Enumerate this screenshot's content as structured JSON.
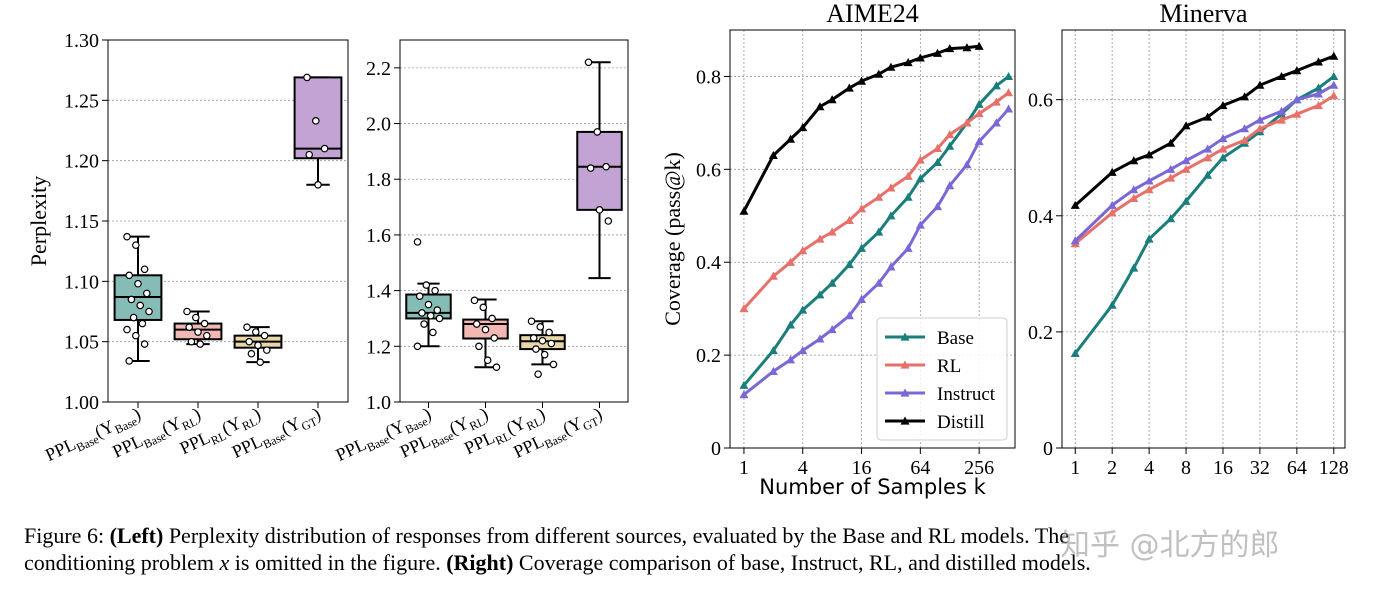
{
  "chart_data": [
    {
      "type": "box",
      "ylabel": "Perplexity",
      "categories": [
        [
          "PPL",
          "Base",
          "(Y",
          "Base",
          ")"
        ],
        [
          "PPL",
          "Base",
          "(Y",
          "RL",
          ")"
        ],
        [
          "PPL",
          "RL",
          "(Y",
          "RL",
          ")"
        ],
        [
          "PPL",
          "Base",
          "(Y",
          "GT",
          ")"
        ]
      ],
      "boxes": [
        {
          "min": 1.034,
          "q1": 1.068,
          "median": 1.087,
          "q3": 1.105,
          "max": 1.137,
          "color": "#86bcb6",
          "points": [
            1.137,
            1.13,
            1.11,
            1.105,
            1.098,
            1.09,
            1.085,
            1.08,
            1.075,
            1.07,
            1.065,
            1.06,
            1.055,
            1.048,
            1.034
          ]
        },
        {
          "min": 1.048,
          "q1": 1.052,
          "median": 1.06,
          "q3": 1.065,
          "max": 1.075,
          "color": "#f2b8b4",
          "points": [
            1.075,
            1.07,
            1.065,
            1.062,
            1.058,
            1.055,
            1.05,
            1.048
          ]
        },
        {
          "min": 1.033,
          "q1": 1.045,
          "median": 1.05,
          "q3": 1.055,
          "max": 1.062,
          "color": "#e8d6a8",
          "points": [
            1.062,
            1.058,
            1.055,
            1.05,
            1.047,
            1.043,
            1.04,
            1.033
          ]
        },
        {
          "min": 1.18,
          "q1": 1.202,
          "median": 1.21,
          "q3": 1.269,
          "max": 1.269,
          "color": "#c3a3d3",
          "points": [
            1.269,
            1.233,
            1.21,
            1.205,
            1.18
          ]
        }
      ],
      "ylim": [
        1.0,
        1.3
      ],
      "yticks": [
        {
          "value": 1.0,
          "label": "1.00"
        },
        1.05,
        {
          "value": 1.1,
          "label": "1.10"
        },
        1.15,
        {
          "value": 1.2,
          "label": "1.20"
        },
        1.25,
        {
          "value": 1.3,
          "label": "1.30"
        }
      ],
      "grid": true
    },
    {
      "type": "box",
      "categories": [
        [
          "PPL",
          "Base",
          "(Y",
          "Base",
          ")"
        ],
        [
          "PPL",
          "Base",
          "(Y",
          "RL",
          ")"
        ],
        [
          "PPL",
          "RL",
          "(Y",
          "RL",
          ")"
        ],
        [
          "PPL",
          "Base",
          "(Y",
          "GT",
          ")"
        ]
      ],
      "boxes": [
        {
          "min": 1.2,
          "q1": 1.3,
          "median": 1.32,
          "q3": 1.386,
          "max": 1.425,
          "color": "#86bcb6",
          "points": [
            1.575,
            1.42,
            1.4,
            1.38,
            1.35,
            1.33,
            1.32,
            1.31,
            1.3,
            1.28,
            1.25,
            1.2
          ]
        },
        {
          "min": 1.125,
          "q1": 1.228,
          "median": 1.28,
          "q3": 1.296,
          "max": 1.368,
          "color": "#f2b8b4",
          "points": [
            1.365,
            1.34,
            1.3,
            1.28,
            1.26,
            1.23,
            1.2,
            1.15,
            1.125
          ]
        },
        {
          "min": 1.135,
          "q1": 1.19,
          "median": 1.218,
          "q3": 1.24,
          "max": 1.29,
          "color": "#e8d6a8",
          "points": [
            1.29,
            1.27,
            1.25,
            1.23,
            1.22,
            1.21,
            1.19,
            1.17,
            1.135,
            1.1
          ]
        },
        {
          "min": 1.445,
          "q1": 1.69,
          "median": 1.845,
          "q3": 1.97,
          "max": 2.22,
          "color": "#c3a3d3",
          "points": [
            2.22,
            1.97,
            1.845,
            1.84,
            1.69,
            1.65
          ]
        }
      ],
      "ylim": [
        1.0,
        2.3
      ],
      "yticks": [
        {
          "value": 1.0,
          "label": "1.0"
        },
        1.2,
        1.4,
        1.6,
        1.8,
        {
          "value": 2.0,
          "label": "2.0"
        },
        2.2
      ],
      "grid": true
    },
    {
      "type": "line",
      "title": "AIME24",
      "xlabel": "Number of Samples k",
      "ylabel": "Coverage (pass@k)",
      "x": [
        1,
        2,
        3,
        4,
        6,
        8,
        12,
        16,
        24,
        32,
        48,
        64,
        96,
        128,
        192,
        256,
        384,
        512
      ],
      "series": [
        {
          "name": "Base",
          "color": "#1a7f7a",
          "values": [
            0.135,
            0.21,
            0.265,
            0.297,
            0.33,
            0.355,
            0.395,
            0.43,
            0.465,
            0.5,
            0.54,
            0.58,
            0.615,
            0.65,
            0.7,
            0.74,
            0.78,
            0.8
          ]
        },
        {
          "name": "RL",
          "color": "#e8706a",
          "values": [
            0.3,
            0.37,
            0.4,
            0.425,
            0.45,
            0.465,
            0.49,
            0.515,
            0.54,
            0.56,
            0.585,
            0.62,
            0.645,
            0.675,
            0.7,
            0.72,
            0.745,
            0.765
          ]
        },
        {
          "name": "Instruct",
          "color": "#7b68d6",
          "values": [
            0.115,
            0.165,
            0.19,
            0.21,
            0.235,
            0.255,
            0.285,
            0.32,
            0.355,
            0.39,
            0.43,
            0.48,
            0.52,
            0.565,
            0.61,
            0.66,
            0.7,
            0.73
          ]
        },
        {
          "name": "Distill",
          "color": "#000000",
          "values": [
            0.51,
            0.63,
            0.665,
            0.69,
            0.735,
            0.75,
            0.775,
            0.79,
            0.805,
            0.82,
            0.83,
            0.84,
            0.85,
            0.86,
            0.862,
            0.865,
            null,
            null
          ]
        }
      ],
      "xscale": "log",
      "xlim": [
        0.72,
        596
      ],
      "xticks": [
        1,
        4,
        16,
        64,
        256
      ],
      "ylim": [
        0,
        0.9
      ],
      "yticks": [
        0,
        0.2,
        0.4,
        0.6,
        0.8
      ],
      "grid": true,
      "legend": "lower right"
    },
    {
      "type": "line",
      "title": "Minerva",
      "x": [
        1,
        2,
        3,
        4,
        6,
        8,
        12,
        16,
        24,
        32,
        48,
        64,
        96,
        128
      ],
      "series": [
        {
          "color": "#1a7f7a",
          "values": [
            0.163,
            0.246,
            0.31,
            0.36,
            0.395,
            0.425,
            0.47,
            0.5,
            0.525,
            0.545,
            0.575,
            0.6,
            0.62,
            0.64
          ]
        },
        {
          "color": "#e8706a",
          "values": [
            0.352,
            0.405,
            0.43,
            0.445,
            0.465,
            0.48,
            0.5,
            0.515,
            0.53,
            0.55,
            0.565,
            0.575,
            0.59,
            0.607
          ]
        },
        {
          "color": "#7b68d6",
          "values": [
            0.357,
            0.418,
            0.445,
            0.46,
            0.48,
            0.495,
            0.515,
            0.533,
            0.55,
            0.565,
            0.58,
            0.6,
            0.61,
            0.625
          ]
        },
        {
          "color": "#000000",
          "values": [
            0.418,
            0.475,
            0.495,
            0.505,
            0.525,
            0.555,
            0.57,
            0.59,
            0.605,
            0.625,
            0.64,
            0.65,
            0.665,
            0.675
          ]
        }
      ],
      "xscale": "log",
      "xlim": [
        0.78,
        158
      ],
      "xticks": [
        1,
        2,
        4,
        8,
        16,
        32,
        64,
        128
      ],
      "ylim": [
        0,
        0.72
      ],
      "yticks": [
        0,
        0.2,
        0.4,
        0.6
      ],
      "grid": true
    }
  ],
  "caption": {
    "label": "Figure 6:",
    "left_head": "(Left)",
    "left_text": "Perplexity distribution of responses from different sources, evaluated by the Base and RL models. The",
    "line2_a": "conditioning problem",
    "var": "x",
    "line2_b": "is omitted in the figure.",
    "right_head": "(Right)",
    "right_text": "Coverage comparison of base, Instruct, RL, and distilled models."
  },
  "watermark": "知乎 @北方的郎"
}
